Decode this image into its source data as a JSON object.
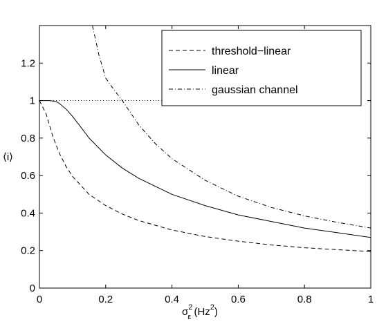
{
  "chart_data": {
    "type": "line",
    "xlabel": {
      "sigma": "σ",
      "sup": "2",
      "sub": "ε",
      "unit_open": " (Hz",
      "unit_sup": "2",
      "unit_close": ")"
    },
    "ylabel": "⟨i⟩",
    "xlim": [
      0,
      1
    ],
    "ylim": [
      0,
      1.4
    ],
    "xticks": [
      0,
      0.2,
      0.4,
      0.6,
      0.8,
      1
    ],
    "xtick_labels": [
      "0",
      "0.2",
      "0.4",
      "0.6",
      "0.8",
      "1"
    ],
    "yticks": [
      0,
      0.2,
      0.4,
      0.6,
      0.8,
      1,
      1.2
    ],
    "ytick_labels": [
      "0",
      "0.2",
      "0.4",
      "0.6",
      "0.8",
      "1",
      "1.2"
    ],
    "grid": false,
    "legend_position": "top-right",
    "reference_line": {
      "y": 1,
      "x_range": [
        0,
        0.37
      ],
      "style": "dotted"
    },
    "series": [
      {
        "name": "threshold−linear",
        "style": "dashed",
        "x": [
          0,
          0.02,
          0.04,
          0.06,
          0.08,
          0.1,
          0.15,
          0.2,
          0.25,
          0.3,
          0.4,
          0.5,
          0.6,
          0.7,
          0.8,
          0.9,
          1.0
        ],
        "y": [
          1.0,
          0.93,
          0.81,
          0.72,
          0.65,
          0.595,
          0.5,
          0.44,
          0.395,
          0.36,
          0.31,
          0.275,
          0.25,
          0.23,
          0.215,
          0.205,
          0.195
        ]
      },
      {
        "name": "linear",
        "style": "solid",
        "x": [
          0,
          0.03,
          0.05,
          0.06,
          0.08,
          0.1,
          0.12,
          0.15,
          0.2,
          0.25,
          0.3,
          0.4,
          0.5,
          0.6,
          0.7,
          0.8,
          0.9,
          1.0
        ],
        "y": [
          1.0,
          1.0,
          0.995,
          0.985,
          0.955,
          0.915,
          0.87,
          0.8,
          0.71,
          0.64,
          0.585,
          0.5,
          0.44,
          0.39,
          0.355,
          0.32,
          0.295,
          0.27
        ]
      },
      {
        "name": "gaussian channel",
        "style": "dashdot",
        "x": [
          0.16,
          0.18,
          0.2,
          0.22,
          0.25,
          0.3,
          0.35,
          0.4,
          0.5,
          0.6,
          0.7,
          0.8,
          0.9,
          1.0
        ],
        "y": [
          1.4,
          1.24,
          1.12,
          1.07,
          1.0,
          0.87,
          0.77,
          0.69,
          0.575,
          0.49,
          0.43,
          0.385,
          0.35,
          0.32
        ]
      }
    ]
  }
}
